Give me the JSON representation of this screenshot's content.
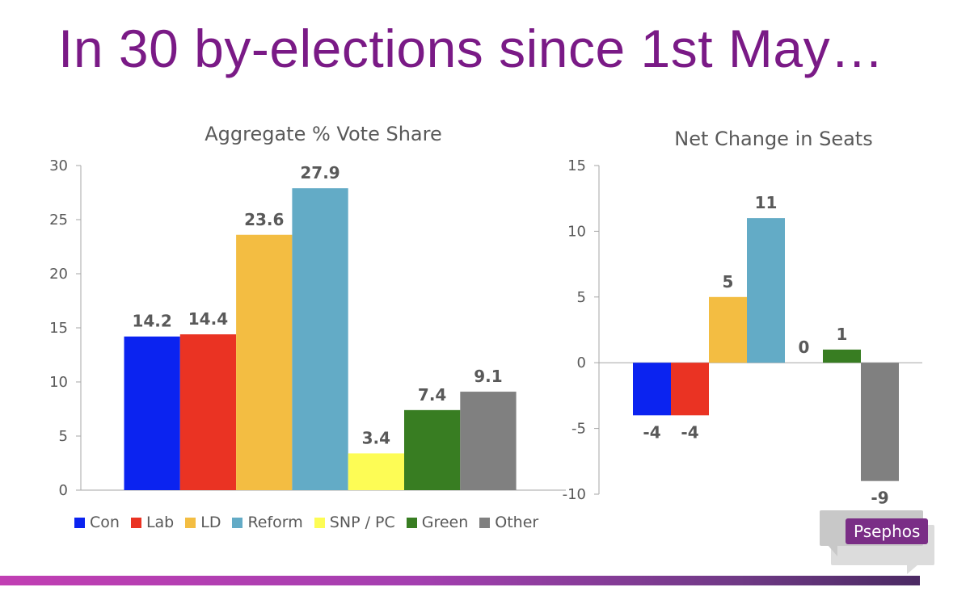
{
  "slide": {
    "title": "In 30 by-elections since 1st May…",
    "logo_text": "Psephos"
  },
  "colors": {
    "title": "#7a1a86",
    "Con": "#0b23f0",
    "Lab": "#ea3323",
    "LD": "#f3bd42",
    "Reform": "#63abc6",
    "SNP / PC": "#fdfc55",
    "Green": "#387d22",
    "Other": "#808080"
  },
  "chart_data": [
    {
      "type": "bar",
      "title": "Aggregate % Vote Share",
      "categories": [
        "Con",
        "Lab",
        "LD",
        "Reform",
        "SNP / PC",
        "Green",
        "Other"
      ],
      "values": [
        14.2,
        14.4,
        23.6,
        27.9,
        3.4,
        7.4,
        9.1
      ],
      "value_labels": [
        "14.2",
        "14.4",
        "23.6",
        "27.9",
        "3.4",
        "7.4",
        "9.1"
      ],
      "ylim": [
        0,
        30
      ],
      "yticks": [
        "0",
        "5",
        "10",
        "15",
        "20",
        "25",
        "30"
      ],
      "xlabel": "",
      "ylabel": "",
      "grid": false,
      "legend": "bottom"
    },
    {
      "type": "bar",
      "title": "Net Change in Seats",
      "categories": [
        "Con",
        "Lab",
        "LD",
        "Reform",
        "SNP / PC",
        "Green",
        "Other"
      ],
      "values": [
        -4,
        -4,
        5,
        11,
        0,
        1,
        -9
      ],
      "value_labels": [
        "-4",
        "-4",
        "5",
        "11",
        "0",
        "1",
        "-9"
      ],
      "ylim": [
        -10,
        15
      ],
      "yticks": [
        "-10",
        "-5",
        "0",
        "5",
        "10",
        "15"
      ],
      "xlabel": "",
      "ylabel": "",
      "grid": false,
      "legend": "none"
    }
  ]
}
